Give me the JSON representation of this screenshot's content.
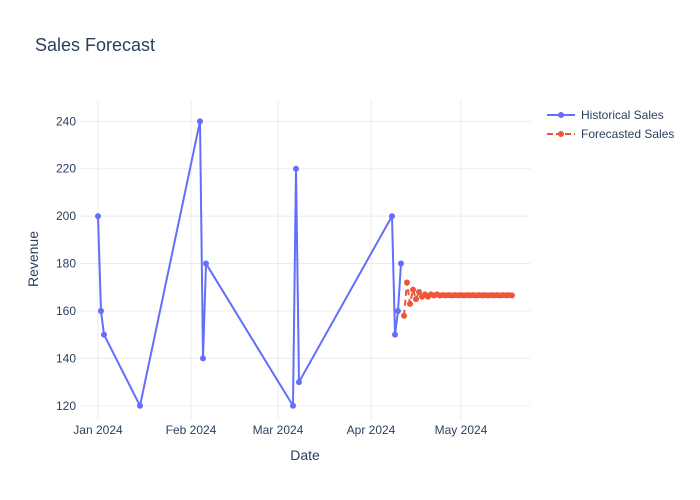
{
  "chart_data": {
    "type": "line",
    "title": "Sales Forecast",
    "xlabel": "Date",
    "ylabel": "Revenue",
    "xlim": [
      "2023-12-26",
      "2024-05-24"
    ],
    "ylim": [
      114,
      249
    ],
    "x_ticks": [
      {
        "date": "2024-01-01",
        "label": "Jan 2024"
      },
      {
        "date": "2024-02-01",
        "label": "Feb 2024"
      },
      {
        "date": "2024-03-01",
        "label": "Mar 2024"
      },
      {
        "date": "2024-04-01",
        "label": "Apr 2024"
      },
      {
        "date": "2024-05-01",
        "label": "May 2024"
      }
    ],
    "y_ticks": [
      120,
      140,
      160,
      180,
      200,
      220,
      240
    ],
    "grid": true,
    "legend_position": "top-right",
    "series": [
      {
        "name": "Historical Sales",
        "color": "#636efa",
        "dash": "solid",
        "points": [
          {
            "x": "2024-01-01",
            "y": 200
          },
          {
            "x": "2024-01-02",
            "y": 160
          },
          {
            "x": "2024-01-03",
            "y": 150
          },
          {
            "x": "2024-01-15",
            "y": 120
          },
          {
            "x": "2024-02-04",
            "y": 240
          },
          {
            "x": "2024-02-05",
            "y": 140
          },
          {
            "x": "2024-02-06",
            "y": 180
          },
          {
            "x": "2024-03-06",
            "y": 120
          },
          {
            "x": "2024-03-07",
            "y": 220
          },
          {
            "x": "2024-03-08",
            "y": 130
          },
          {
            "x": "2024-04-08",
            "y": 200
          },
          {
            "x": "2024-04-09",
            "y": 150
          },
          {
            "x": "2024-04-10",
            "y": 160
          },
          {
            "x": "2024-04-11",
            "y": 180
          }
        ]
      },
      {
        "name": "Forecasted Sales",
        "color": "#ef553b",
        "dash": "dash",
        "points": [
          {
            "x": "2024-04-12",
            "y": 158
          },
          {
            "x": "2024-04-13",
            "y": 172
          },
          {
            "x": "2024-04-14",
            "y": 163
          },
          {
            "x": "2024-04-15",
            "y": 169
          },
          {
            "x": "2024-04-16",
            "y": 165
          },
          {
            "x": "2024-04-17",
            "y": 168
          },
          {
            "x": "2024-04-18",
            "y": 166
          },
          {
            "x": "2024-04-19",
            "y": 167
          },
          {
            "x": "2024-04-20",
            "y": 166
          },
          {
            "x": "2024-04-21",
            "y": 167
          },
          {
            "x": "2024-04-22",
            "y": 166.5
          },
          {
            "x": "2024-04-23",
            "y": 167
          },
          {
            "x": "2024-04-24",
            "y": 166.5
          },
          {
            "x": "2024-04-25",
            "y": 166.7
          },
          {
            "x": "2024-04-26",
            "y": 166.6
          },
          {
            "x": "2024-04-27",
            "y": 166.7
          },
          {
            "x": "2024-04-28",
            "y": 166.6
          },
          {
            "x": "2024-04-29",
            "y": 166.7
          },
          {
            "x": "2024-04-30",
            "y": 166.6
          },
          {
            "x": "2024-05-01",
            "y": 166.7
          },
          {
            "x": "2024-05-02",
            "y": 166.6
          },
          {
            "x": "2024-05-03",
            "y": 166.7
          },
          {
            "x": "2024-05-04",
            "y": 166.6
          },
          {
            "x": "2024-05-05",
            "y": 166.7
          },
          {
            "x": "2024-05-06",
            "y": 166.6
          },
          {
            "x": "2024-05-07",
            "y": 166.7
          },
          {
            "x": "2024-05-08",
            "y": 166.6
          },
          {
            "x": "2024-05-09",
            "y": 166.7
          },
          {
            "x": "2024-05-10",
            "y": 166.6
          },
          {
            "x": "2024-05-11",
            "y": 166.7
          },
          {
            "x": "2024-05-12",
            "y": 166.6
          },
          {
            "x": "2024-05-13",
            "y": 166.7
          },
          {
            "x": "2024-05-14",
            "y": 166.6
          },
          {
            "x": "2024-05-15",
            "y": 166.7
          },
          {
            "x": "2024-05-16",
            "y": 166.6
          },
          {
            "x": "2024-05-17",
            "y": 166.7
          },
          {
            "x": "2024-05-18",
            "y": 166.6
          }
        ]
      }
    ]
  }
}
